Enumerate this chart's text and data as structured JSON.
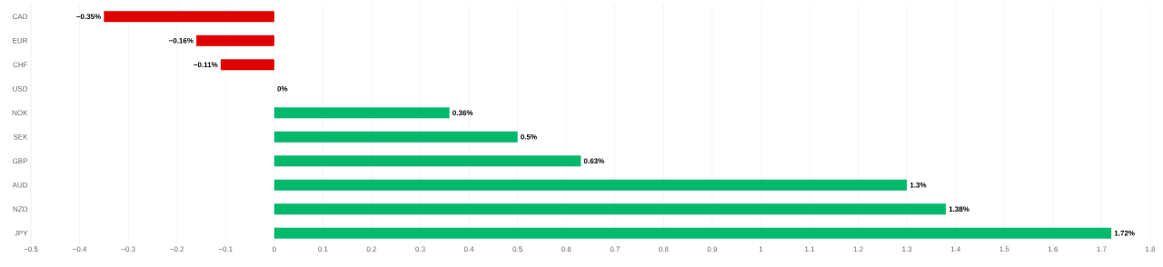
{
  "chart_data": {
    "type": "bar",
    "orientation": "horizontal",
    "categories": [
      "CAD",
      "EUR",
      "CHF",
      "USD",
      "NOK",
      "SEK",
      "GBP",
      "AUD",
      "NZD",
      "JPY"
    ],
    "values": [
      -0.35,
      -0.16,
      -0.11,
      0,
      0.36,
      0.5,
      0.63,
      1.3,
      1.38,
      1.72
    ],
    "value_labels": [
      "−0.35%",
      "−0.16%",
      "−0.11%",
      "0%",
      "0.36%",
      "0.5%",
      "0.63%",
      "1.3%",
      "1.38%",
      "1.72%"
    ],
    "colors": [
      "#e00000",
      "#e00000",
      "#e00000",
      "#00b96b",
      "#00b96b",
      "#00b96b",
      "#00b96b",
      "#00b96b",
      "#00b96b",
      "#00b96b"
    ],
    "xlim": [
      -0.5,
      1.8
    ],
    "xticks": [
      {
        "value": -0.5,
        "label": "−0.5"
      },
      {
        "value": -0.4,
        "label": "−0.4"
      },
      {
        "value": -0.3,
        "label": "−0.3"
      },
      {
        "value": -0.2,
        "label": "−0.2"
      },
      {
        "value": -0.1,
        "label": "−0.1"
      },
      0,
      0.1,
      0.2,
      0.3,
      0.4,
      0.5,
      0.6,
      0.7,
      0.8,
      0.9,
      1,
      1.1,
      1.2,
      1.3,
      1.4,
      1.5,
      1.6,
      1.7,
      1.8
    ],
    "grid": "x"
  }
}
